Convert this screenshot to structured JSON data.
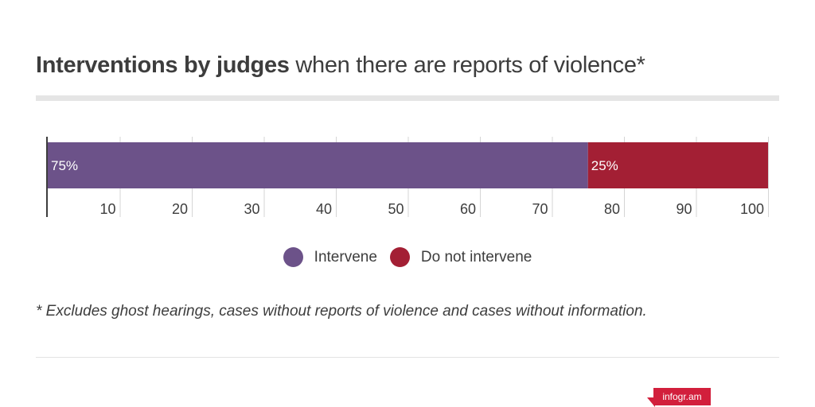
{
  "title": {
    "bold": "Interventions by judges",
    "rest": "when there are reports of violence*"
  },
  "chart_data": {
    "type": "bar",
    "orientation": "horizontal",
    "stacked": true,
    "categories": [
      ""
    ],
    "series": [
      {
        "name": "Intervene",
        "values": [
          75
        ],
        "label": "75%",
        "color": "#6c5289"
      },
      {
        "name": "Do not intervene",
        "values": [
          25
        ],
        "label": "25%",
        "color": "#a31f34"
      }
    ],
    "xlim": [
      0,
      100
    ],
    "xticks": [
      10,
      20,
      30,
      40,
      50,
      60,
      70,
      80,
      90,
      100
    ],
    "grid": true,
    "legend_position": "bottom-center"
  },
  "legend": [
    {
      "label": "Intervene",
      "color": "#6c5289"
    },
    {
      "label": "Do not intervene",
      "color": "#a31f34"
    }
  ],
  "footnote": "* Excludes ghost hearings, cases without reports of violence and cases without information.",
  "badge": {
    "label": "infogr.am"
  }
}
